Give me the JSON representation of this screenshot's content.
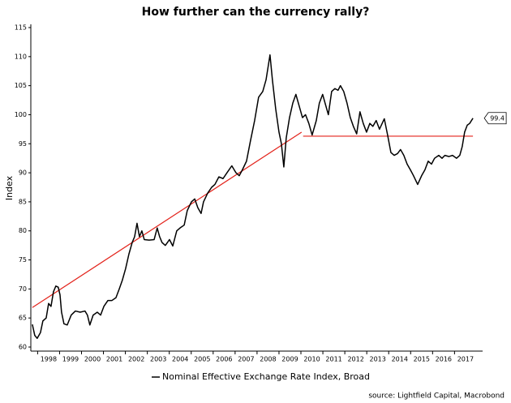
{
  "chart_data": {
    "type": "line",
    "title": "How further can the currency rally?",
    "y_label": "Index",
    "source": "source: Lightfield Capital, Macrobond",
    "xlim": [
      1997.69,
      2018.28
    ],
    "ylim": [
      59.3,
      115.56
    ],
    "yticks": [
      60,
      65,
      70,
      75,
      80,
      85,
      90,
      95,
      100,
      105,
      110,
      115
    ],
    "xticks": [
      {
        "value": 1998,
        "label": "1998"
      },
      {
        "value": 1999,
        "label": "1999"
      },
      {
        "value": 2000,
        "label": "2000"
      },
      {
        "value": 2001,
        "label": "2001"
      },
      {
        "value": 2002,
        "label": "2002"
      },
      {
        "value": 2003,
        "label": "2003"
      },
      {
        "value": 2004,
        "label": "2004"
      },
      {
        "value": 2005,
        "label": "2005"
      },
      {
        "value": 2006,
        "label": "2006"
      },
      {
        "value": 2007,
        "label": "2007"
      },
      {
        "value": 2008,
        "label": "2008"
      },
      {
        "value": 2009,
        "label": "2009"
      },
      {
        "value": 2010,
        "label": "2010"
      },
      {
        "value": 2011,
        "label": "2011"
      },
      {
        "value": 2012,
        "label": "2012"
      },
      {
        "value": 2013,
        "label": "2013"
      },
      {
        "value": 2014,
        "label": "2014"
      },
      {
        "value": 2015,
        "label": "2015"
      },
      {
        "value": 2016,
        "label": "2016"
      },
      {
        "value": 2017,
        "label": "2017"
      }
    ],
    "x": [
      1997.76,
      1997.87,
      1997.98,
      1998.13,
      1998.24,
      1998.39,
      1998.5,
      1998.61,
      1998.72,
      1998.83,
      1998.94,
      1999.02,
      1999.09,
      1999.2,
      1999.35,
      1999.53,
      1999.72,
      1999.94,
      2000.16,
      2000.27,
      2000.38,
      2000.53,
      2000.72,
      2000.87,
      2001.02,
      2001.2,
      2001.38,
      2001.57,
      2001.72,
      2001.86,
      2002.01,
      2002.16,
      2002.31,
      2002.42,
      2002.53,
      2002.64,
      2002.75,
      2002.86,
      2003.08,
      2003.31,
      2003.45,
      2003.56,
      2003.67,
      2003.82,
      2004.01,
      2004.16,
      2004.34,
      2004.49,
      2004.68,
      2004.82,
      2005.01,
      2005.16,
      2005.3,
      2005.45,
      2005.56,
      2005.75,
      2005.93,
      2006.08,
      2006.26,
      2006.45,
      2006.63,
      2006.85,
      2007.04,
      2007.19,
      2007.33,
      2007.52,
      2007.7,
      2007.89,
      2008.07,
      2008.26,
      2008.41,
      2008.59,
      2008.7,
      2008.85,
      2009.0,
      2009.11,
      2009.22,
      2009.33,
      2009.48,
      2009.63,
      2009.77,
      2009.92,
      2010.07,
      2010.21,
      2010.36,
      2010.51,
      2010.7,
      2010.84,
      2010.99,
      2011.1,
      2011.25,
      2011.4,
      2011.55,
      2011.69,
      2011.8,
      2011.95,
      2012.1,
      2012.25,
      2012.39,
      2012.54,
      2012.69,
      2012.84,
      2012.99,
      2013.14,
      2013.28,
      2013.43,
      2013.58,
      2013.8,
      2013.95,
      2014.1,
      2014.25,
      2014.4,
      2014.54,
      2014.69,
      2014.84,
      2014.99,
      2015.13,
      2015.32,
      2015.5,
      2015.65,
      2015.8,
      2015.95,
      2016.09,
      2016.28,
      2016.43,
      2016.56,
      2016.74,
      2016.91,
      2017.09,
      2017.24,
      2017.35,
      2017.46,
      2017.58,
      2017.69,
      2017.84
    ],
    "series": [
      {
        "name": "Nominal Effective Exchange Rate Index, Broad",
        "color": "#000000",
        "values": [
          63.9,
          62,
          61.5,
          62.5,
          64.5,
          65,
          67.5,
          67,
          69.5,
          70.5,
          70.3,
          69,
          66,
          64,
          63.8,
          65.5,
          66.2,
          66,
          66.2,
          65.5,
          63.8,
          65.5,
          66,
          65.5,
          67,
          68,
          68,
          68.5,
          70,
          71.5,
          73.5,
          76,
          78,
          79,
          81.3,
          79,
          80,
          78.5,
          78.4,
          78.5,
          80.5,
          79,
          78,
          77.5,
          78.5,
          77.4,
          80,
          80.5,
          81,
          83.5,
          85,
          85.5,
          84,
          83,
          85,
          86.5,
          87.5,
          88,
          89.3,
          89,
          90,
          91.2,
          90,
          89.5,
          90.5,
          92,
          95.5,
          99,
          103,
          104,
          106,
          110.3,
          106,
          101,
          97,
          95,
          91,
          96,
          99.5,
          102,
          103.5,
          101.5,
          99.5,
          100,
          98.5,
          96.5,
          99,
          102,
          103.5,
          102,
          100,
          104,
          104.5,
          104.2,
          105,
          104,
          102,
          99.5,
          98,
          96.7,
          100.5,
          98.5,
          97,
          98.5,
          98,
          99,
          97.5,
          99.3,
          96.5,
          93.5,
          93,
          93.3,
          94,
          93,
          91.5,
          90.5,
          89.5,
          88,
          89.5,
          90.5,
          92,
          91.5,
          92.5,
          93,
          92.5,
          93,
          92.8,
          93,
          92.5,
          93,
          94.5,
          97,
          98.2,
          98.5,
          99.4
        ]
      }
    ],
    "end_label": 99.4,
    "trend_lines": [
      {
        "color": "#e3231b",
        "x": [
          1997.76,
          2010.03
        ],
        "values": [
          66.8,
          97
        ]
      },
      {
        "color": "#e3231b",
        "x": [
          2010.1,
          2017.84
        ],
        "values": [
          96.3,
          96.3
        ]
      }
    ]
  }
}
